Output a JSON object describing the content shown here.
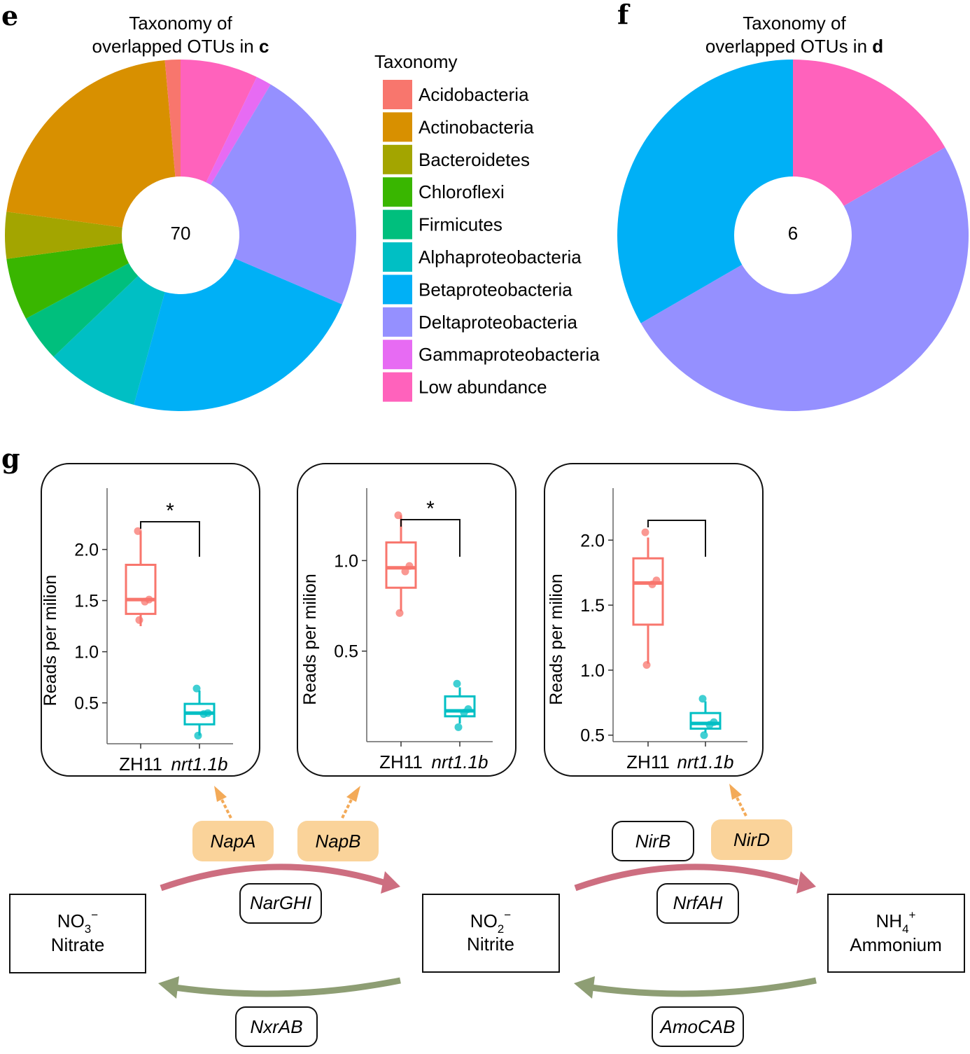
{
  "panels": {
    "e": {
      "letter": "e",
      "title_line1": "Taxonomy of",
      "title_line2_prefix": "overlapped OTUs in ",
      "title_line2_bold": "c",
      "center_label": "70"
    },
    "f": {
      "letter": "f",
      "title_line1": "Taxonomy of",
      "title_line2_prefix": "overlapped OTUs in ",
      "title_line2_bold": "d",
      "center_label": "6"
    },
    "g": {
      "letter": "g"
    }
  },
  "legend": {
    "title": "Taxonomy",
    "items": [
      {
        "label": "Acidobacteria",
        "color": "#F8766D"
      },
      {
        "label": "Actinobacteria",
        "color": "#D89000"
      },
      {
        "label": "Bacteroidetes",
        "color": "#A3A500"
      },
      {
        "label": "Chloroflexi",
        "color": "#39B600"
      },
      {
        "label": "Firmicutes",
        "color": "#00BF7D"
      },
      {
        "label": "Alphaproteobacteria",
        "color": "#00BFC4"
      },
      {
        "label": "Betaproteobacteria",
        "color": "#00B0F6"
      },
      {
        "label": "Deltaproteobacteria",
        "color": "#9590FF"
      },
      {
        "label": "Gammaproteobacteria",
        "color": "#E76BF3"
      },
      {
        "label": "Low abundance",
        "color": "#FF62BC"
      }
    ]
  },
  "chart_data": [
    {
      "type": "pie",
      "panel": "e",
      "donut": true,
      "total": 70,
      "slices": [
        {
          "label": "Low abundance",
          "value": 5
        },
        {
          "label": "Gammaproteobacteria",
          "value": 1
        },
        {
          "label": "Deltaproteobacteria",
          "value": 16
        },
        {
          "label": "Betaproteobacteria",
          "value": 16
        },
        {
          "label": "Alphaproteobacteria",
          "value": 6
        },
        {
          "label": "Firmicutes",
          "value": 3
        },
        {
          "label": "Chloroflexi",
          "value": 4
        },
        {
          "label": "Bacteroidetes",
          "value": 3
        },
        {
          "label": "Actinobacteria",
          "value": 15
        },
        {
          "label": "Acidobacteria",
          "value": 1
        }
      ]
    },
    {
      "type": "pie",
      "panel": "f",
      "donut": true,
      "total": 6,
      "slices": [
        {
          "label": "Low abundance",
          "value": 1
        },
        {
          "label": "Deltaproteobacteria",
          "value": 3
        },
        {
          "label": "Betaproteobacteria",
          "value": 2
        }
      ]
    },
    {
      "type": "box",
      "gene": "NapA",
      "ylabel": "Reads per milion",
      "ylim": [
        0.1,
        2.6
      ],
      "ticks": [
        0.5,
        1.0,
        1.5,
        2.0
      ],
      "tick_labels": [
        "0.5",
        "1.0",
        "1.5",
        "2.0"
      ],
      "categories": [
        "ZH11",
        "nrt1.1b"
      ],
      "significance": "*",
      "boxes": [
        {
          "group": "ZH11",
          "color": "#F8766D",
          "whisker_low": 1.25,
          "q1": 1.37,
          "median": 1.51,
          "q3": 1.85,
          "whisker_high": 2.18,
          "points": [
            1.31,
            1.49,
            1.51,
            2.18
          ]
        },
        {
          "group": "nrt1.1b",
          "color": "#00BFC4",
          "whisker_low": 0.18,
          "q1": 0.29,
          "median": 0.4,
          "q3": 0.49,
          "whisker_high": 0.62,
          "points": [
            0.18,
            0.39,
            0.4,
            0.64
          ]
        }
      ]
    },
    {
      "type": "box",
      "gene": "NapB",
      "ylabel": "Reads per milion",
      "ylim": [
        0.0,
        1.4
      ],
      "ticks": [
        0.5,
        1.0
      ],
      "tick_labels": [
        "0.5",
        "1.0"
      ],
      "categories": [
        "ZH11",
        "nrt1.1b"
      ],
      "significance": "*",
      "boxes": [
        {
          "group": "ZH11",
          "color": "#F8766D",
          "whisker_low": 0.72,
          "q1": 0.85,
          "median": 0.96,
          "q3": 1.1,
          "whisker_high": 1.25,
          "points": [
            0.71,
            0.94,
            0.97,
            1.25
          ]
        },
        {
          "group": "nrt1.1b",
          "color": "#00BFC4",
          "whisker_low": 0.1,
          "q1": 0.14,
          "median": 0.17,
          "q3": 0.25,
          "whisker_high": 0.3,
          "points": [
            0.08,
            0.16,
            0.18,
            0.32
          ]
        }
      ]
    },
    {
      "type": "box",
      "gene": "NirD",
      "ylabel": "Reads per milion",
      "ylim": [
        0.45,
        2.4
      ],
      "ticks": [
        0.5,
        1.0,
        1.5,
        2.0
      ],
      "tick_labels": [
        "0.5",
        "1.0",
        "1.5",
        "2.0"
      ],
      "categories": [
        "ZH11",
        "nrt1.1b"
      ],
      "significance": "",
      "boxes": [
        {
          "group": "ZH11",
          "color": "#F8766D",
          "whisker_low": 1.05,
          "q1": 1.35,
          "median": 1.67,
          "q3": 1.86,
          "whisker_high": 2.02,
          "points": [
            1.04,
            1.66,
            1.69,
            2.06
          ]
        },
        {
          "group": "nrt1.1b",
          "color": "#00BFC4",
          "whisker_low": 0.52,
          "q1": 0.55,
          "median": 0.59,
          "q3": 0.67,
          "whisker_high": 0.76,
          "points": [
            0.5,
            0.58,
            0.6,
            0.78
          ]
        }
      ]
    }
  ],
  "pathway": {
    "nodes": [
      {
        "id": "nitrate",
        "formula_main": "NO",
        "formula_sub": "3",
        "formula_sup": "−",
        "name": "Nitrate"
      },
      {
        "id": "nitrite",
        "formula_main": "NO",
        "formula_sub": "2",
        "formula_sup": "−",
        "name": "Nitrite"
      },
      {
        "id": "ammonium",
        "formula_main": "NH",
        "formula_sub": "4",
        "formula_sup": "+",
        "name": "Ammonium"
      }
    ],
    "genes": {
      "highlighted": [
        "NapA",
        "NapB",
        "NirD"
      ],
      "plain": [
        "NirB",
        "NarGHI",
        "NrfAH",
        "NxrAB",
        "AmoCAB"
      ]
    },
    "colors": {
      "forward_arrow": "#CD6E80",
      "reverse_arrow": "#8E9E74",
      "highlight_fill": "#FAD39A",
      "dashed_arrow": "#F3AA58"
    }
  }
}
